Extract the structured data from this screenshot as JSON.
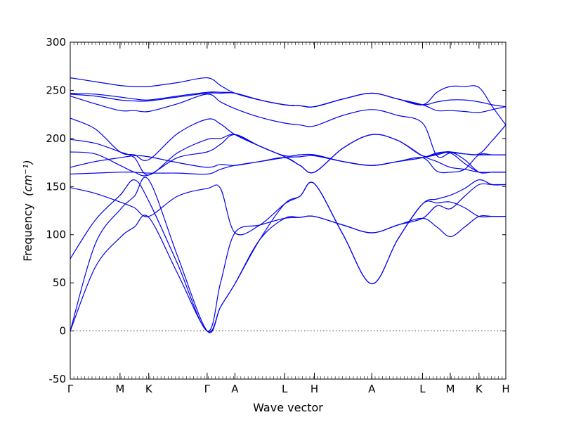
{
  "chart_data": {
    "type": "line",
    "title": "",
    "xlabel": "Wave vector",
    "ylabel": "Frequency",
    "ylabel_unit": "(cm⁻¹)",
    "ylim": [
      -50,
      300
    ],
    "yticks": [
      -50,
      0,
      50,
      100,
      150,
      200,
      250,
      300
    ],
    "xlim": [
      0,
      4.55
    ],
    "zero_line": "dotted",
    "line_color": "#0000ee",
    "x_ticks": [
      {
        "x": 0.0,
        "label": "Γ"
      },
      {
        "x": 0.52,
        "label": "M"
      },
      {
        "x": 0.82,
        "label": "K"
      },
      {
        "x": 1.43,
        "label": "Γ"
      },
      {
        "x": 1.72,
        "label": "A"
      },
      {
        "x": 2.24,
        "label": "L"
      },
      {
        "x": 2.55,
        "label": "H"
      },
      {
        "x": 3.15,
        "label": "A"
      },
      {
        "x": 3.68,
        "label": "L"
      },
      {
        "x": 3.97,
        "label": "M"
      },
      {
        "x": 4.27,
        "label": "K"
      },
      {
        "x": 4.55,
        "label": "H"
      }
    ],
    "series": [
      {
        "x": [
          0,
          0.26,
          0.52,
          0.67,
          0.82,
          1.12,
          1.43,
          1.57,
          1.72,
          1.98,
          2.24,
          2.4,
          2.55,
          2.85,
          3.15,
          3.42,
          3.68,
          3.83,
          3.97,
          4.12,
          4.27,
          4.41,
          4.55
        ],
        "y": [
          0,
          66,
          97,
          108,
          118,
          60,
          0,
          25,
          49,
          95,
          117,
          118,
          119,
          110,
          102,
          110,
          117,
          108,
          98,
          108,
          119,
          119,
          119
        ]
      },
      {
        "x": [
          0,
          0.26,
          0.52,
          0.67,
          0.82,
          1.12,
          1.43,
          1.57,
          1.72,
          1.98,
          2.24,
          2.4,
          2.55,
          2.85,
          3.15,
          3.42,
          3.68,
          3.83,
          3.97,
          4.12,
          4.27,
          4.41,
          4.55
        ],
        "y": [
          0,
          90,
          126,
          140,
          157,
          78,
          0,
          25,
          49,
          95,
          132,
          140,
          153,
          100,
          49,
          95,
          132,
          133,
          134,
          128,
          119,
          119,
          119
        ]
      },
      {
        "x": [
          0,
          0.26,
          0.52,
          0.67,
          0.82,
          1.12,
          1.43,
          1.57,
          1.72,
          1.98,
          2.24,
          2.4,
          2.55,
          2.85,
          3.15,
          3.42,
          3.68,
          3.83,
          3.97,
          4.12,
          4.27,
          4.41,
          4.55
        ],
        "y": [
          75,
          115,
          141,
          157,
          135,
          70,
          0,
          50,
          102,
          110,
          117,
          118,
          119,
          110,
          102,
          110,
          117,
          130,
          127,
          140,
          152,
          152,
          152
        ]
      },
      {
        "x": [
          0,
          0.26,
          0.52,
          0.67,
          0.82,
          1.12,
          1.43,
          1.57,
          1.72,
          1.98,
          2.24,
          2.4,
          2.55,
          2.85,
          3.15,
          3.42,
          3.68,
          3.83,
          3.97,
          4.12,
          4.27,
          4.41,
          4.55
        ],
        "y": [
          149,
          143,
          134,
          128,
          119,
          140,
          148,
          148,
          102,
          110,
          132,
          140,
          153,
          100,
          49,
          95,
          132,
          137,
          141,
          148,
          157,
          152,
          152
        ]
      },
      {
        "x": [
          0,
          0.26,
          0.52,
          0.67,
          0.82,
          1.12,
          1.43,
          1.57,
          1.72,
          1.98,
          2.24,
          2.4,
          2.55,
          2.85,
          3.15,
          3.42,
          3.68,
          3.83,
          3.97,
          4.12,
          4.27,
          4.41,
          4.55
        ],
        "y": [
          163,
          164,
          165,
          165,
          164,
          164,
          163,
          168,
          172,
          176,
          180,
          181,
          182,
          176,
          172,
          176,
          180,
          183,
          185,
          174,
          165,
          165,
          165
        ]
      },
      {
        "x": [
          0,
          0.26,
          0.52,
          0.67,
          0.82,
          1.12,
          1.43,
          1.57,
          1.72,
          1.98,
          2.24,
          2.4,
          2.55,
          2.85,
          3.15,
          3.42,
          3.68,
          3.83,
          3.97,
          4.12,
          4.27,
          4.41,
          4.55
        ],
        "y": [
          170,
          176,
          180,
          182,
          181,
          175,
          170,
          173,
          172,
          176,
          180,
          172,
          165,
          190,
          204,
          198,
          182,
          184,
          186,
          178,
          165,
          165,
          165
        ]
      },
      {
        "x": [
          0,
          0.26,
          0.52,
          0.67,
          0.82,
          1.12,
          1.43,
          1.57,
          1.72,
          1.98,
          2.24,
          2.4,
          2.55,
          2.85,
          3.15,
          3.42,
          3.68,
          3.83,
          3.97,
          4.12,
          4.27,
          4.41,
          4.55
        ],
        "y": [
          186,
          184,
          172,
          165,
          162,
          180,
          186,
          194,
          204,
          192,
          181,
          172,
          165,
          190,
          204,
          198,
          182,
          176,
          170,
          168,
          165,
          165,
          165
        ]
      },
      {
        "x": [
          0,
          0.26,
          0.52,
          0.67,
          0.82,
          1.12,
          1.43,
          1.57,
          1.72,
          1.98,
          2.24,
          2.4,
          2.55,
          2.85,
          3.15,
          3.42,
          3.68,
          3.83,
          3.97,
          4.12,
          4.27,
          4.41,
          4.55
        ],
        "y": [
          199,
          195,
          186,
          180,
          162,
          185,
          199,
          200,
          204,
          192,
          182,
          183,
          183,
          176,
          172,
          176,
          180,
          185,
          186,
          184,
          183,
          183,
          183
        ]
      },
      {
        "x": [
          0,
          0.26,
          0.52,
          0.67,
          0.82,
          1.12,
          1.43,
          1.57,
          1.72,
          1.98,
          2.24,
          2.4,
          2.55,
          2.85,
          3.15,
          3.42,
          3.68,
          3.83,
          3.97,
          4.12,
          4.27,
          4.41,
          4.55
        ],
        "y": [
          221,
          210,
          186,
          183,
          178,
          205,
          220,
          215,
          204,
          192,
          182,
          183,
          183,
          176,
          172,
          176,
          180,
          166,
          165,
          168,
          183,
          183,
          183
        ]
      },
      {
        "x": [
          0,
          0.26,
          0.52,
          0.67,
          0.82,
          1.12,
          1.43,
          1.57,
          1.72,
          1.98,
          2.24,
          2.4,
          2.55,
          2.85,
          3.15,
          3.42,
          3.68,
          3.83,
          3.97,
          4.12,
          4.27,
          4.41,
          4.55
        ],
        "y": [
          244,
          236,
          229,
          229,
          228,
          236,
          246,
          238,
          231,
          222,
          216,
          214,
          213,
          224,
          230,
          224,
          216,
          182,
          185,
          184,
          184,
          198,
          214
        ]
      },
      {
        "x": [
          0,
          0.26,
          0.52,
          0.67,
          0.82,
          1.12,
          1.43,
          1.57,
          1.72,
          1.98,
          2.24,
          2.4,
          2.55,
          2.85,
          3.15,
          3.42,
          3.68,
          3.83,
          3.97,
          4.12,
          4.27,
          4.41,
          4.55
        ],
        "y": [
          246,
          244,
          240,
          239,
          239,
          243,
          247,
          247,
          247,
          240,
          235,
          234,
          233,
          241,
          247,
          241,
          235,
          229,
          229,
          228,
          227,
          230,
          233
        ]
      },
      {
        "x": [
          0,
          0.26,
          0.52,
          0.67,
          0.82,
          1.12,
          1.43,
          1.57,
          1.72,
          1.98,
          2.24,
          2.4,
          2.55,
          2.85,
          3.15,
          3.42,
          3.68,
          3.83,
          3.97,
          4.12,
          4.27,
          4.41,
          4.55
        ],
        "y": [
          247,
          246,
          243,
          241,
          240,
          244,
          248,
          248,
          247,
          240,
          235,
          234,
          233,
          241,
          247,
          241,
          235,
          238,
          240,
          240,
          238,
          235,
          233
        ]
      },
      {
        "x": [
          0,
          0.26,
          0.52,
          0.67,
          0.82,
          1.12,
          1.43,
          1.57,
          1.72,
          1.98,
          2.24,
          2.4,
          2.55,
          2.85,
          3.15,
          3.42,
          3.68,
          3.83,
          3.97,
          4.12,
          4.27,
          4.41,
          4.55
        ],
        "y": [
          263,
          259,
          255,
          254,
          254,
          258,
          263,
          255,
          247,
          240,
          235,
          234,
          233,
          241,
          247,
          241,
          235,
          248,
          254,
          254,
          253,
          233,
          214
        ]
      }
    ]
  }
}
